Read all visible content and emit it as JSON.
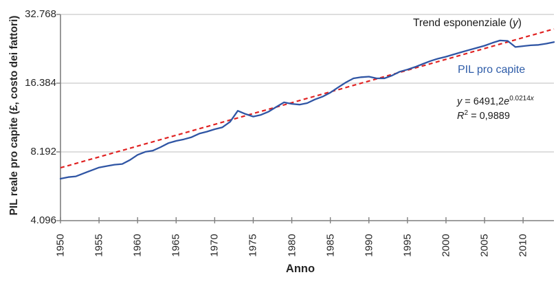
{
  "figure": {
    "y_axis": {
      "title": "PIL reale pro capite (£, costo dei fattori)",
      "tick_labels": [
        "32.768",
        "16.384",
        "8.192",
        "4.096"
      ],
      "tick_values": [
        32768,
        16384,
        8192,
        4096
      ]
    },
    "x_axis": {
      "title": "Anno",
      "tick_labels": [
        "1950",
        "1955",
        "1960",
        "1965",
        "1970",
        "1975",
        "1980",
        "1985",
        "1990",
        "1995",
        "2000",
        "2005",
        "2010"
      ],
      "tick_values": [
        1950,
        1955,
        1960,
        1965,
        1970,
        1975,
        1980,
        1985,
        1990,
        1995,
        2000,
        2005,
        2010
      ]
    },
    "annotations": {
      "trend_label_pre": "Trend esponenziale (",
      "trend_label_var": "y",
      "trend_label_post": ")",
      "series_label": "PIL pro capite",
      "equation": {
        "lhs_var": "y",
        "mid": " = 6491,2",
        "base_var": "e",
        "exp_num": "0.0214",
        "exp_var": "x"
      },
      "r_squared": {
        "base_var": "R",
        "sup": "2",
        "rest": " = 0,9889"
      }
    },
    "colors": {
      "series_line": "#2f55a4",
      "trend_line": "#e02222",
      "gridline": "#c9c9c9",
      "axis": "#7f7f7f",
      "text": "#262626",
      "series_label_text": "#2e5ca8"
    }
  },
  "chart_data": {
    "type": "line",
    "title": "",
    "xlabel": "Anno",
    "ylabel": "PIL reale pro capite (£, costo dei fattori)",
    "y_scale": "log2",
    "ylim": [
      4096,
      32768
    ],
    "xlim": [
      1950,
      2014
    ],
    "y_ticks": [
      4096,
      8192,
      16384,
      32768
    ],
    "x_ticks": [
      1950,
      1955,
      1960,
      1965,
      1970,
      1975,
      1980,
      1985,
      1990,
      1995,
      2000,
      2005,
      2010
    ],
    "grid": "horizontal",
    "legend_position": "inline-text-annotations",
    "x": [
      1950,
      1951,
      1952,
      1953,
      1954,
      1955,
      1956,
      1957,
      1958,
      1959,
      1960,
      1961,
      1962,
      1963,
      1964,
      1965,
      1966,
      1967,
      1968,
      1969,
      1970,
      1971,
      1972,
      1973,
      1974,
      1975,
      1976,
      1977,
      1978,
      1979,
      1980,
      1981,
      1982,
      1983,
      1984,
      1985,
      1986,
      1987,
      1988,
      1989,
      1990,
      1991,
      1992,
      1993,
      1994,
      1995,
      1996,
      1997,
      1998,
      1999,
      2000,
      2001,
      2002,
      2003,
      2004,
      2005,
      2006,
      2007,
      2008,
      2009,
      2010,
      2011,
      2012,
      2013,
      2014
    ],
    "series": [
      {
        "name": "PIL pro capite",
        "type": "line",
        "style": "solid",
        "color": "#2f55a4",
        "values": [
          6250,
          6350,
          6400,
          6600,
          6800,
          7000,
          7100,
          7200,
          7250,
          7550,
          7950,
          8200,
          8300,
          8600,
          8950,
          9150,
          9300,
          9500,
          9850,
          10050,
          10300,
          10500,
          11100,
          12400,
          12000,
          11700,
          11900,
          12300,
          12900,
          13500,
          13300,
          13200,
          13400,
          13900,
          14300,
          14900,
          15700,
          16500,
          17200,
          17400,
          17500,
          17200,
          17200,
          17700,
          18400,
          18800,
          19300,
          19900,
          20500,
          21000,
          21400,
          21900,
          22400,
          22900,
          23400,
          23900,
          24600,
          25200,
          25100,
          23600,
          23800,
          24000,
          24100,
          24400,
          24800
        ]
      },
      {
        "name": "Trend esponenziale (y)",
        "type": "line",
        "style": "dashed",
        "color": "#e02222",
        "formula": "y = 6491,2e^(0.0214x)",
        "r_squared": "R² = 0,9889",
        "endpoints": {
          "x": [
            1950,
            2014
          ],
          "y": [
            6980,
            28300
          ]
        }
      }
    ]
  }
}
